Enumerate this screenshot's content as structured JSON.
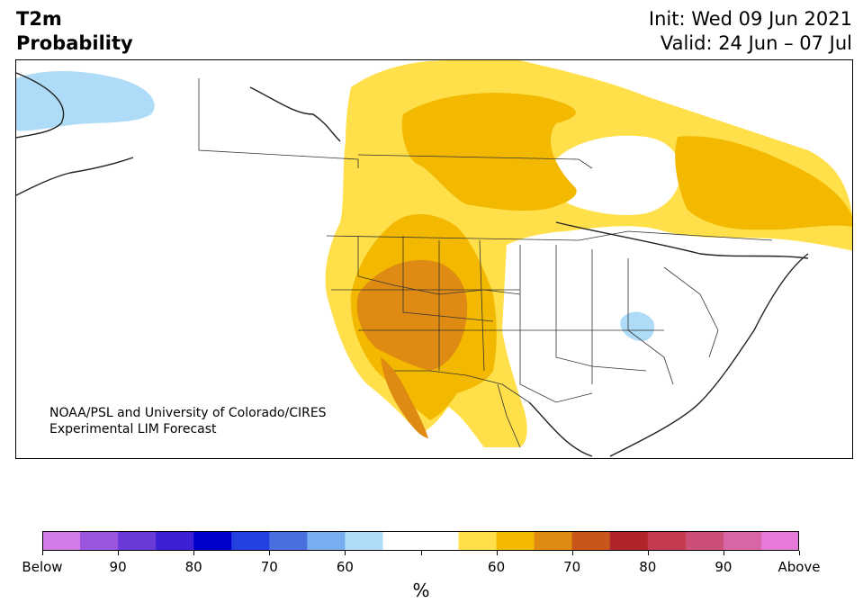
{
  "title": {
    "left_line1": "T2m",
    "left_line2": "Probability",
    "right_line1": "Init: Wed 09 Jun 2021",
    "right_line2": "Valid: 24 Jun – 07 Jul"
  },
  "map": {
    "credit_line1": "NOAA/PSL and University of Colorado/CIRES",
    "credit_line2": "Experimental LIM Forecast"
  },
  "colorbar": {
    "colors": [
      "#d17ae8",
      "#9b55de",
      "#6a3ad8",
      "#3b20d4",
      "#0000cc",
      "#2340e0",
      "#4a70e0",
      "#78aef0",
      "#aedcf8",
      "#ffffff",
      "#ffffff",
      "#ffe04a",
      "#f3b800",
      "#df8a12",
      "#c8561a",
      "#b0242a",
      "#c43a50",
      "#cc4f78",
      "#d865a4",
      "#e77ad8"
    ],
    "labels": [
      "Below",
      "90",
      "80",
      "70",
      "60",
      "",
      "60",
      "70",
      "80",
      "90",
      "Above"
    ],
    "unit": "%"
  },
  "palette": {
    "below_light_blue": "#aedcf8",
    "above_yellow": "#ffe04a",
    "above_gold": "#f3b800",
    "above_orange": "#df8a12"
  }
}
